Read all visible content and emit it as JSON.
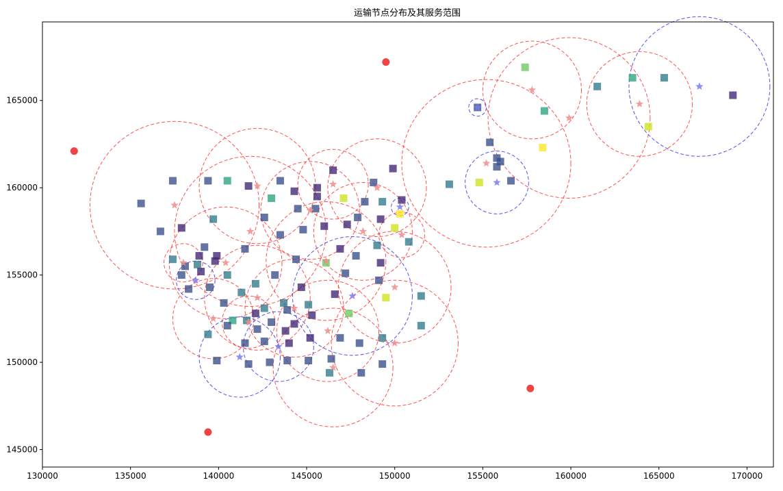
{
  "chart_data": {
    "type": "scatter",
    "title": "运输节点分布及其服务范围",
    "xlabel": "",
    "ylabel": "",
    "xlim": [
      130000,
      171500
    ],
    "ylim": [
      144000,
      169500
    ],
    "x_ticks": [
      130000,
      135000,
      140000,
      145000,
      150000,
      155000,
      160000,
      165000,
      170000
    ],
    "y_ticks": [
      145000,
      150000,
      155000,
      160000,
      165000
    ],
    "grid": false,
    "colors": {
      "red_point": "#ee2222",
      "red_star": "#f08c8c",
      "blue_star": "#7b7bf0",
      "red_circle": "#ff3333",
      "blue_circle": "#3333ee",
      "square_palette": [
        "#3f2573",
        "#3a4e89",
        "#2f7a8c",
        "#2aa37f",
        "#6ccb5f",
        "#cde11d",
        "#fde725"
      ]
    },
    "red_points": [
      {
        "x": 131800,
        "y": 162100
      },
      {
        "x": 149500,
        "y": 167200
      },
      {
        "x": 139400,
        "y": 146000
      },
      {
        "x": 157700,
        "y": 148500
      }
    ],
    "service_nodes": [
      {
        "x": 137500,
        "y": 159000,
        "r": 4800,
        "kind": "red"
      },
      {
        "x": 142200,
        "y": 160100,
        "r": 3300,
        "kind": "red"
      },
      {
        "x": 141800,
        "y": 157500,
        "r": 4300,
        "kind": "red"
      },
      {
        "x": 145200,
        "y": 158700,
        "r": 2800,
        "kind": "red"
      },
      {
        "x": 146500,
        "y": 160200,
        "r": 2000,
        "kind": "red"
      },
      {
        "x": 149000,
        "y": 160000,
        "r": 2800,
        "kind": "red"
      },
      {
        "x": 148200,
        "y": 157500,
        "r": 2800,
        "kind": "red"
      },
      {
        "x": 150400,
        "y": 157300,
        "r": 1300,
        "kind": "red"
      },
      {
        "x": 146100,
        "y": 155800,
        "r": 3400,
        "kind": "red"
      },
      {
        "x": 140400,
        "y": 155700,
        "r": 3200,
        "kind": "red"
      },
      {
        "x": 138000,
        "y": 155700,
        "r": 1100,
        "kind": "red"
      },
      {
        "x": 139700,
        "y": 152500,
        "r": 2300,
        "kind": "red"
      },
      {
        "x": 141700,
        "y": 152300,
        "r": 1500,
        "kind": "red"
      },
      {
        "x": 142200,
        "y": 153700,
        "r": 3000,
        "kind": "red"
      },
      {
        "x": 144300,
        "y": 153100,
        "r": 2800,
        "kind": "red"
      },
      {
        "x": 146200,
        "y": 151800,
        "r": 2900,
        "kind": "red"
      },
      {
        "x": 150000,
        "y": 154300,
        "r": 3200,
        "kind": "red"
      },
      {
        "x": 150000,
        "y": 151100,
        "r": 3600,
        "kind": "red"
      },
      {
        "x": 146500,
        "y": 149700,
        "r": 3400,
        "kind": "red"
      },
      {
        "x": 155200,
        "y": 161400,
        "r": 4800,
        "kind": "red"
      },
      {
        "x": 157800,
        "y": 165600,
        "r": 2800,
        "kind": "red"
      },
      {
        "x": 159900,
        "y": 164000,
        "r": 4600,
        "kind": "red"
      },
      {
        "x": 163900,
        "y": 164800,
        "r": 3000,
        "kind": "red"
      },
      {
        "x": 150300,
        "y": 158900,
        "r": 500,
        "kind": "blue"
      },
      {
        "x": 138700,
        "y": 154700,
        "r": 1100,
        "kind": "blue"
      },
      {
        "x": 147600,
        "y": 153800,
        "r": 3400,
        "kind": "blue"
      },
      {
        "x": 141200,
        "y": 150300,
        "r": 2300,
        "kind": "blue"
      },
      {
        "x": 143400,
        "y": 150900,
        "r": 2000,
        "kind": "blue"
      },
      {
        "x": 154700,
        "y": 164600,
        "r": 500,
        "kind": "blue"
      },
      {
        "x": 155800,
        "y": 160300,
        "r": 1800,
        "kind": "blue"
      },
      {
        "x": 167300,
        "y": 165800,
        "r": 4000,
        "kind": "blue"
      }
    ],
    "squares": [
      {
        "x": 135600,
        "y": 159100,
        "c": 1
      },
      {
        "x": 137400,
        "y": 160400,
        "c": 1
      },
      {
        "x": 136700,
        "y": 157500,
        "c": 1
      },
      {
        "x": 137900,
        "y": 157700,
        "c": 0
      },
      {
        "x": 139400,
        "y": 160400,
        "c": 1
      },
      {
        "x": 140500,
        "y": 160400,
        "c": 3
      },
      {
        "x": 139700,
        "y": 158200,
        "c": 2
      },
      {
        "x": 137400,
        "y": 155900,
        "c": 2
      },
      {
        "x": 139200,
        "y": 156600,
        "c": 1
      },
      {
        "x": 139900,
        "y": 156100,
        "c": 0
      },
      {
        "x": 138900,
        "y": 156100,
        "c": 0
      },
      {
        "x": 139800,
        "y": 155800,
        "c": 0
      },
      {
        "x": 138100,
        "y": 155500,
        "c": 1
      },
      {
        "x": 138800,
        "y": 155600,
        "c": 2
      },
      {
        "x": 139000,
        "y": 155200,
        "c": 0
      },
      {
        "x": 137900,
        "y": 155000,
        "c": 1
      },
      {
        "x": 138300,
        "y": 154200,
        "c": 1
      },
      {
        "x": 139500,
        "y": 154300,
        "c": 1
      },
      {
        "x": 140500,
        "y": 155000,
        "c": 2
      },
      {
        "x": 141700,
        "y": 160100,
        "c": 0
      },
      {
        "x": 143000,
        "y": 159400,
        "c": 3
      },
      {
        "x": 143500,
        "y": 160400,
        "c": 1
      },
      {
        "x": 142600,
        "y": 158300,
        "c": 1
      },
      {
        "x": 143500,
        "y": 157300,
        "c": 1
      },
      {
        "x": 141500,
        "y": 156500,
        "c": 1
      },
      {
        "x": 144300,
        "y": 159800,
        "c": 0
      },
      {
        "x": 144500,
        "y": 158800,
        "c": 1
      },
      {
        "x": 145600,
        "y": 160000,
        "c": 0
      },
      {
        "x": 145600,
        "y": 159500,
        "c": 0
      },
      {
        "x": 145500,
        "y": 158800,
        "c": 1
      },
      {
        "x": 144800,
        "y": 157600,
        "c": 1
      },
      {
        "x": 146000,
        "y": 157800,
        "c": 0
      },
      {
        "x": 146500,
        "y": 161000,
        "c": 0
      },
      {
        "x": 147100,
        "y": 159400,
        "c": 5
      },
      {
        "x": 148300,
        "y": 159200,
        "c": 1
      },
      {
        "x": 148800,
        "y": 160300,
        "c": 1
      },
      {
        "x": 149300,
        "y": 159200,
        "c": 2
      },
      {
        "x": 149900,
        "y": 161100,
        "c": 0
      },
      {
        "x": 150400,
        "y": 159300,
        "c": 0
      },
      {
        "x": 150300,
        "y": 158500,
        "c": 6
      },
      {
        "x": 147300,
        "y": 157900,
        "c": 0
      },
      {
        "x": 147900,
        "y": 158300,
        "c": 1
      },
      {
        "x": 149200,
        "y": 158200,
        "c": 0
      },
      {
        "x": 150000,
        "y": 157700,
        "c": 5
      },
      {
        "x": 149000,
        "y": 156700,
        "c": 2
      },
      {
        "x": 150800,
        "y": 156900,
        "c": 2
      },
      {
        "x": 146900,
        "y": 156500,
        "c": 0
      },
      {
        "x": 147800,
        "y": 156100,
        "c": 1
      },
      {
        "x": 144400,
        "y": 155900,
        "c": 1
      },
      {
        "x": 146100,
        "y": 155700,
        "c": 4
      },
      {
        "x": 149200,
        "y": 155700,
        "c": 0
      },
      {
        "x": 147200,
        "y": 155100,
        "c": 1
      },
      {
        "x": 143200,
        "y": 155000,
        "c": 1
      },
      {
        "x": 142100,
        "y": 154500,
        "c": 2
      },
      {
        "x": 144700,
        "y": 154300,
        "c": 0
      },
      {
        "x": 141300,
        "y": 154000,
        "c": 2
      },
      {
        "x": 146600,
        "y": 153900,
        "c": 0
      },
      {
        "x": 149100,
        "y": 154700,
        "c": 1
      },
      {
        "x": 149500,
        "y": 153700,
        "c": 5
      },
      {
        "x": 151500,
        "y": 153800,
        "c": 2
      },
      {
        "x": 140300,
        "y": 153400,
        "c": 1
      },
      {
        "x": 143700,
        "y": 153400,
        "c": 2
      },
      {
        "x": 142600,
        "y": 153100,
        "c": 2
      },
      {
        "x": 143900,
        "y": 153000,
        "c": 1
      },
      {
        "x": 145100,
        "y": 153300,
        "c": 2
      },
      {
        "x": 147400,
        "y": 152800,
        "c": 4
      },
      {
        "x": 142100,
        "y": 152800,
        "c": 0
      },
      {
        "x": 145300,
        "y": 152700,
        "c": 0
      },
      {
        "x": 140800,
        "y": 152400,
        "c": 3
      },
      {
        "x": 141600,
        "y": 152400,
        "c": 2
      },
      {
        "x": 143000,
        "y": 152300,
        "c": 1
      },
      {
        "x": 144300,
        "y": 152200,
        "c": 0
      },
      {
        "x": 151500,
        "y": 152100,
        "c": 2
      },
      {
        "x": 140500,
        "y": 152100,
        "c": 1
      },
      {
        "x": 142200,
        "y": 151900,
        "c": 1
      },
      {
        "x": 143800,
        "y": 151800,
        "c": 0
      },
      {
        "x": 139400,
        "y": 151600,
        "c": 2
      },
      {
        "x": 145200,
        "y": 151400,
        "c": 0
      },
      {
        "x": 146900,
        "y": 151400,
        "c": 1
      },
      {
        "x": 149300,
        "y": 151400,
        "c": 2
      },
      {
        "x": 142600,
        "y": 151200,
        "c": 1
      },
      {
        "x": 141500,
        "y": 151100,
        "c": 1
      },
      {
        "x": 144000,
        "y": 151100,
        "c": 0
      },
      {
        "x": 148000,
        "y": 151100,
        "c": 1
      },
      {
        "x": 139900,
        "y": 150100,
        "c": 1
      },
      {
        "x": 141700,
        "y": 149900,
        "c": 1
      },
      {
        "x": 142900,
        "y": 150000,
        "c": 1
      },
      {
        "x": 143900,
        "y": 150100,
        "c": 1
      },
      {
        "x": 145100,
        "y": 150100,
        "c": 1
      },
      {
        "x": 146400,
        "y": 150200,
        "c": 1
      },
      {
        "x": 149300,
        "y": 149900,
        "c": 1
      },
      {
        "x": 146300,
        "y": 149400,
        "c": 2
      },
      {
        "x": 148100,
        "y": 149400,
        "c": 1
      },
      {
        "x": 153100,
        "y": 160200,
        "c": 2
      },
      {
        "x": 154800,
        "y": 160300,
        "c": 5
      },
      {
        "x": 155400,
        "y": 162600,
        "c": 1
      },
      {
        "x": 155800,
        "y": 161700,
        "c": 1
      },
      {
        "x": 156000,
        "y": 161500,
        "c": 1
      },
      {
        "x": 155800,
        "y": 161200,
        "c": 1
      },
      {
        "x": 156600,
        "y": 160400,
        "c": 1
      },
      {
        "x": 154700,
        "y": 164600,
        "c": 1
      },
      {
        "x": 157400,
        "y": 166900,
        "c": 4
      },
      {
        "x": 158500,
        "y": 164400,
        "c": 3
      },
      {
        "x": 158400,
        "y": 162300,
        "c": 6
      },
      {
        "x": 161500,
        "y": 165800,
        "c": 2
      },
      {
        "x": 163500,
        "y": 166300,
        "c": 3
      },
      {
        "x": 164400,
        "y": 163500,
        "c": 5
      },
      {
        "x": 165300,
        "y": 166300,
        "c": 2
      },
      {
        "x": 169200,
        "y": 165300,
        "c": 0
      }
    ]
  }
}
